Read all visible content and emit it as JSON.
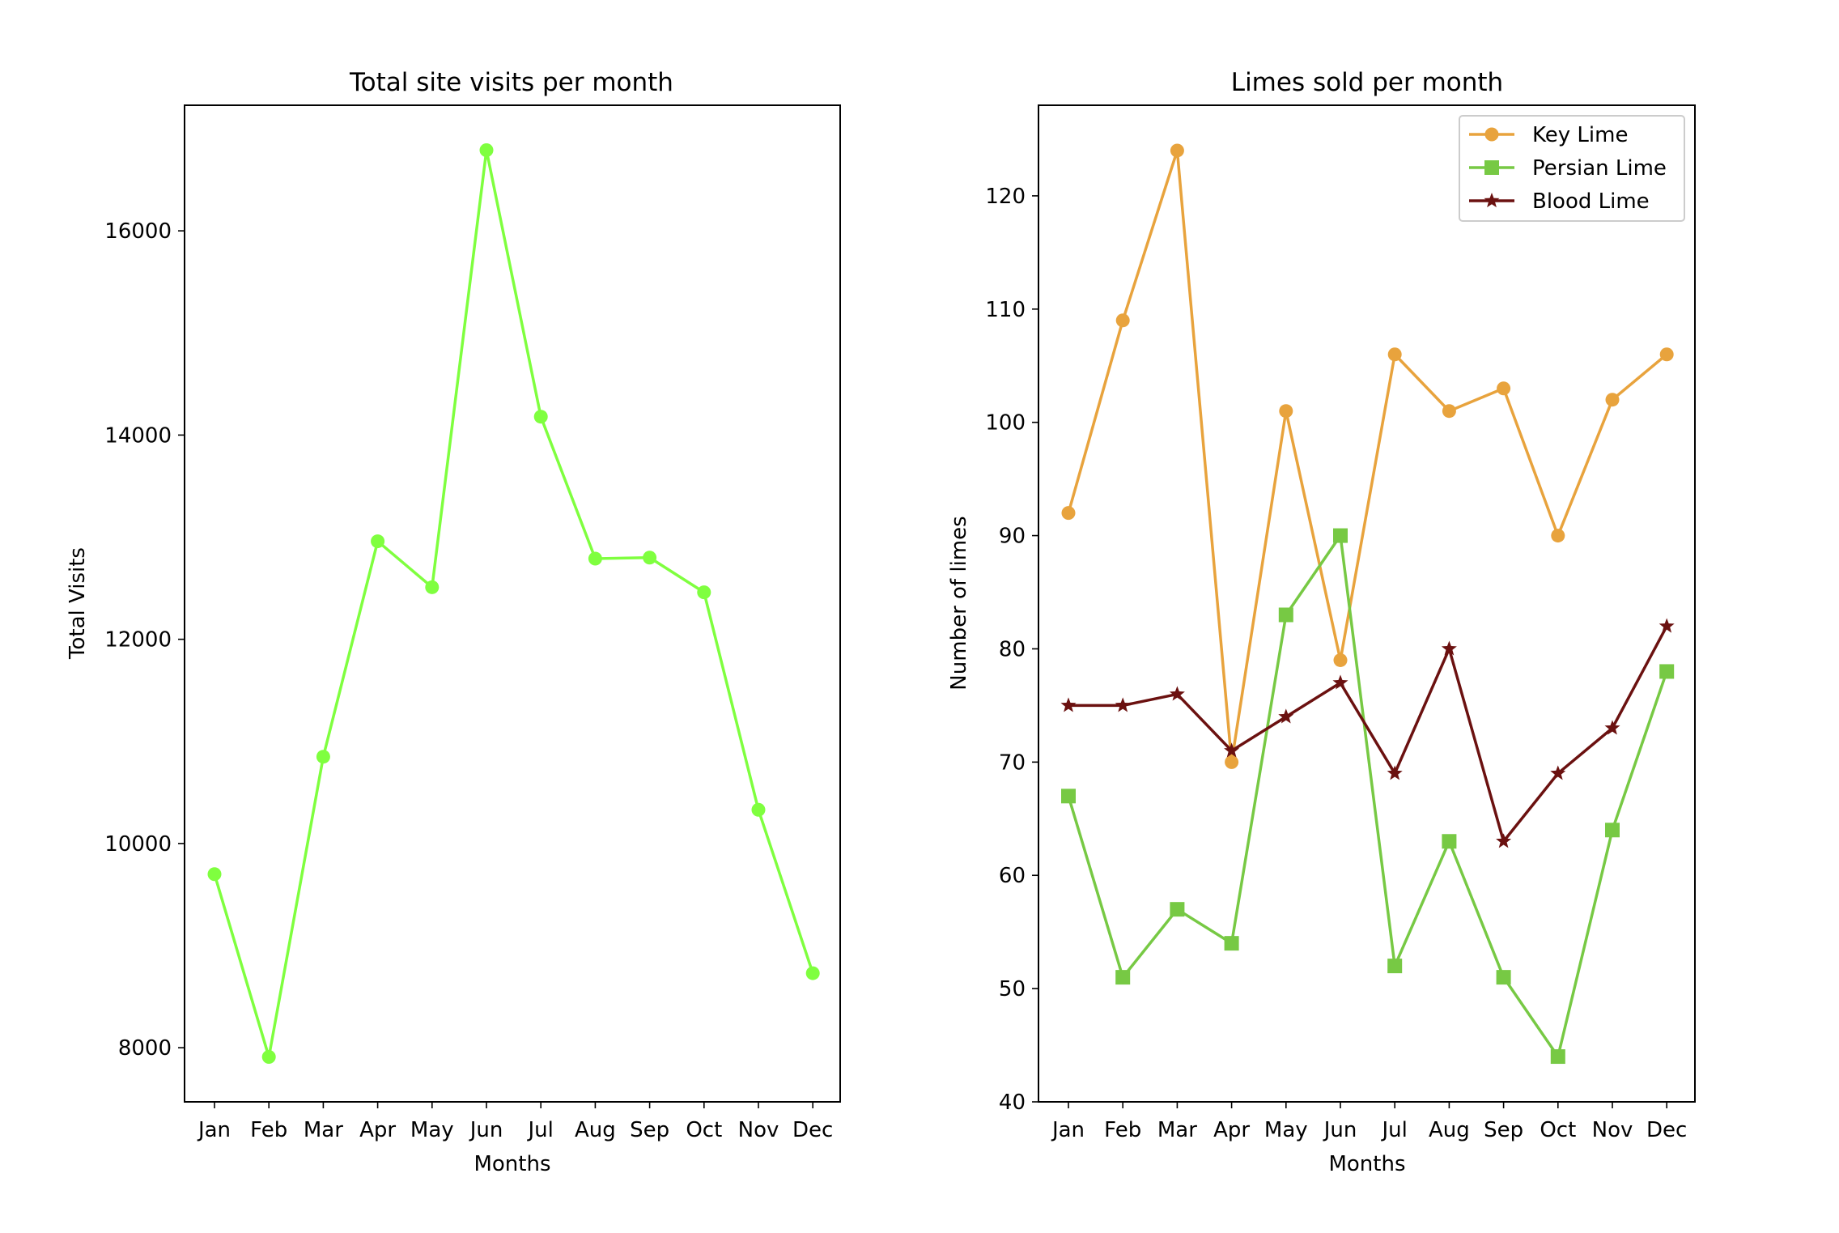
{
  "chart_data": [
    {
      "type": "line",
      "title": "Total site visits per month",
      "xlabel": "Months",
      "ylabel": "Total Visits",
      "categories": [
        "Jan",
        "Feb",
        "Mar",
        "Apr",
        "May",
        "Jun",
        "Jul",
        "Aug",
        "Sep",
        "Oct",
        "Nov",
        "Dec"
      ],
      "ylim": [
        7470,
        17230
      ],
      "yticks": [
        8000,
        10000,
        12000,
        14000,
        16000
      ],
      "grid": false,
      "series": [
        {
          "name": "Total Visits",
          "color": "#7fff3f",
          "marker": "circle",
          "values": [
            9700,
            7910,
            10850,
            12960,
            12510,
            16790,
            14180,
            12790,
            12800,
            12460,
            10330,
            8730
          ]
        }
      ]
    },
    {
      "type": "line",
      "title": "Limes sold per month",
      "xlabel": "Months",
      "ylabel": "Number of limes",
      "categories": [
        "Jan",
        "Feb",
        "Mar",
        "Apr",
        "May",
        "Jun",
        "Jul",
        "Aug",
        "Sep",
        "Oct",
        "Nov",
        "Dec"
      ],
      "ylim": [
        40,
        128
      ],
      "yticks": [
        40,
        50,
        60,
        70,
        80,
        90,
        100,
        110,
        120
      ],
      "grid": false,
      "legend": "top-right",
      "series": [
        {
          "name": "Key Lime",
          "color": "#e8a33d",
          "marker": "circle",
          "values": [
            92,
            109,
            124,
            70,
            101,
            79,
            106,
            101,
            103,
            90,
            102,
            106
          ]
        },
        {
          "name": "Persian Lime",
          "color": "#77c944",
          "marker": "square",
          "values": [
            67,
            51,
            57,
            54,
            83,
            90,
            52,
            63,
            51,
            44,
            64,
            78
          ]
        },
        {
          "name": "Blood Lime",
          "color": "#6b1110",
          "marker": "star",
          "values": [
            75,
            75,
            76,
            71,
            74,
            77,
            69,
            80,
            63,
            69,
            73,
            82
          ]
        }
      ]
    }
  ]
}
